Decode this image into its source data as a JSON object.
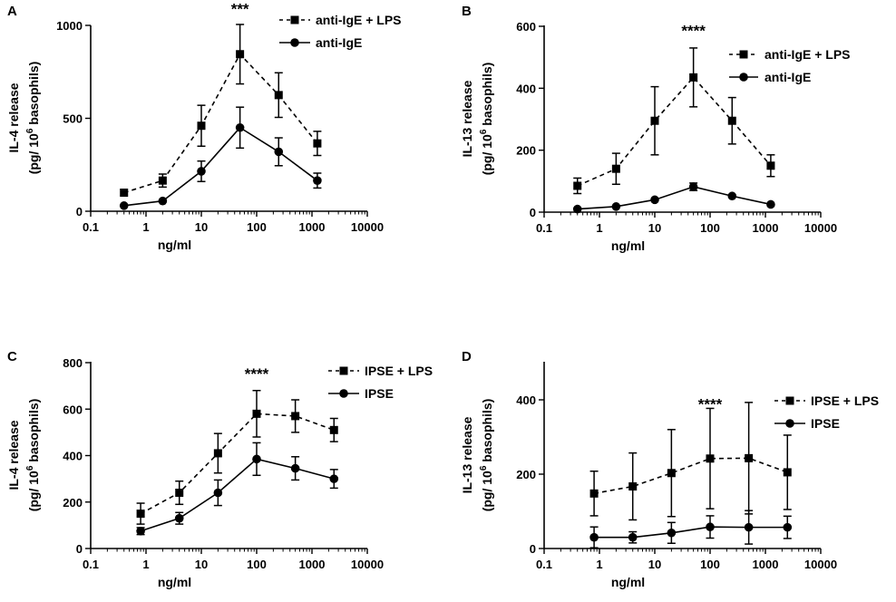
{
  "chart_data": [
    {
      "type": "line",
      "panel": "A",
      "xscale": "log",
      "xlabel": "ng/ml",
      "ylabel": "IL-4 release",
      "ylabel2_pre": "(pg/ 10",
      "ylabel2_sup": "6",
      "ylabel2_post": " basophils)",
      "xlim": [
        0.1,
        10000
      ],
      "ylim": [
        0,
        1000
      ],
      "xticks": [
        "0.1",
        "1",
        "10",
        "100",
        "1000",
        "10000"
      ],
      "yticks": [
        "0",
        "500",
        "1000"
      ],
      "significance": {
        "label": "***",
        "x": 50,
        "y": 1060
      },
      "legend": [
        "anti-IgE + LPS",
        "anti-IgE"
      ],
      "series": [
        {
          "name": "anti-IgE + LPS",
          "marker": "square",
          "line": "dashed",
          "x": [
            0.4,
            2,
            10,
            50,
            250,
            1250
          ],
          "y": [
            100,
            165,
            460,
            845,
            625,
            365
          ],
          "err": [
            0,
            35,
            110,
            160,
            120,
            65
          ]
        },
        {
          "name": "anti-IgE",
          "marker": "circle",
          "line": "solid",
          "x": [
            0.4,
            2,
            10,
            50,
            250,
            1250
          ],
          "y": [
            30,
            55,
            215,
            450,
            320,
            165
          ],
          "err": [
            0,
            0,
            55,
            110,
            75,
            40
          ]
        }
      ]
    },
    {
      "type": "line",
      "panel": "B",
      "xscale": "log",
      "xlabel": "ng/ml",
      "ylabel": "IL-13 release",
      "ylabel2_pre": "(pg/ 10",
      "ylabel2_sup": "6",
      "ylabel2_post": " basophils)",
      "xlim": [
        0.1,
        10000
      ],
      "ylim": [
        0,
        600
      ],
      "xticks": [
        "0.1",
        "1",
        "10",
        "100",
        "1000",
        "10000"
      ],
      "yticks": [
        "0",
        "200",
        "400",
        "600"
      ],
      "significance": {
        "label": "****",
        "x": 50,
        "y": 570
      },
      "legend": [
        "anti-IgE + LPS",
        "anti-IgE"
      ],
      "series": [
        {
          "name": "anti-IgE + LPS",
          "marker": "square",
          "line": "dashed",
          "x": [
            0.4,
            2,
            10,
            50,
            250,
            1250
          ],
          "y": [
            85,
            140,
            295,
            435,
            295,
            150
          ],
          "err": [
            25,
            50,
            110,
            95,
            75,
            35
          ]
        },
        {
          "name": "anti-IgE",
          "marker": "circle",
          "line": "solid",
          "x": [
            0.4,
            2,
            10,
            50,
            250,
            1250
          ],
          "y": [
            10,
            18,
            40,
            82,
            52,
            25
          ],
          "err": [
            0,
            0,
            0,
            12,
            0,
            0
          ]
        }
      ]
    },
    {
      "type": "line",
      "panel": "C",
      "xscale": "log",
      "xlabel": "ng/ml",
      "ylabel": "IL-4 release",
      "ylabel2_pre": "(pg/ 10",
      "ylabel2_sup": "6",
      "ylabel2_post": " basophils)",
      "xlim": [
        0.1,
        10000
      ],
      "ylim": [
        0,
        800
      ],
      "xticks": [
        "0.1",
        "1",
        "10",
        "100",
        "1000",
        "10000"
      ],
      "yticks": [
        "0",
        "200",
        "400",
        "600",
        "800"
      ],
      "significance": {
        "label": "****",
        "x": 100,
        "y": 730
      },
      "legend": [
        "IPSE + LPS",
        "IPSE"
      ],
      "series": [
        {
          "name": "IPSE + LPS",
          "marker": "square",
          "line": "dashed",
          "x": [
            0.8,
            4,
            20,
            100,
            500,
            2500
          ],
          "y": [
            150,
            240,
            410,
            580,
            570,
            510
          ],
          "err": [
            45,
            50,
            85,
            100,
            70,
            50
          ]
        },
        {
          "name": "IPSE",
          "marker": "circle",
          "line": "solid",
          "x": [
            0.8,
            4,
            20,
            100,
            500,
            2500
          ],
          "y": [
            75,
            130,
            240,
            385,
            345,
            300
          ],
          "err": [
            15,
            25,
            55,
            70,
            50,
            40
          ]
        }
      ]
    },
    {
      "type": "line",
      "panel": "D",
      "xscale": "log",
      "xlabel": "ng/ml",
      "ylabel": "IL-13 release",
      "ylabel2_pre": "(pg/ 10",
      "ylabel2_sup": "6",
      "ylabel2_post": " basophils)",
      "xlim": [
        0.1,
        10000
      ],
      "ylim": [
        0,
        500
      ],
      "xticks": [
        "0.1",
        "1",
        "10",
        "100",
        "1000",
        "10000"
      ],
      "yticks": [
        "0",
        "200",
        "400"
      ],
      "significance": {
        "label": "****",
        "x": 100,
        "y": 375
      },
      "legend": [
        "IPSE + LPS",
        "IPSE"
      ],
      "series": [
        {
          "name": "IPSE + LPS",
          "marker": "square",
          "line": "dashed",
          "x": [
            0.8,
            4,
            20,
            100,
            500,
            2500
          ],
          "y": [
            148,
            167,
            203,
            242,
            243,
            205
          ],
          "err": [
            60,
            90,
            117,
            135,
            150,
            100
          ]
        },
        {
          "name": "IPSE",
          "marker": "circle",
          "line": "solid",
          "x": [
            0.8,
            4,
            20,
            100,
            500,
            2500
          ],
          "y": [
            30,
            30,
            42,
            58,
            57,
            57
          ],
          "err": [
            28,
            15,
            28,
            30,
            45,
            30
          ]
        }
      ]
    }
  ]
}
